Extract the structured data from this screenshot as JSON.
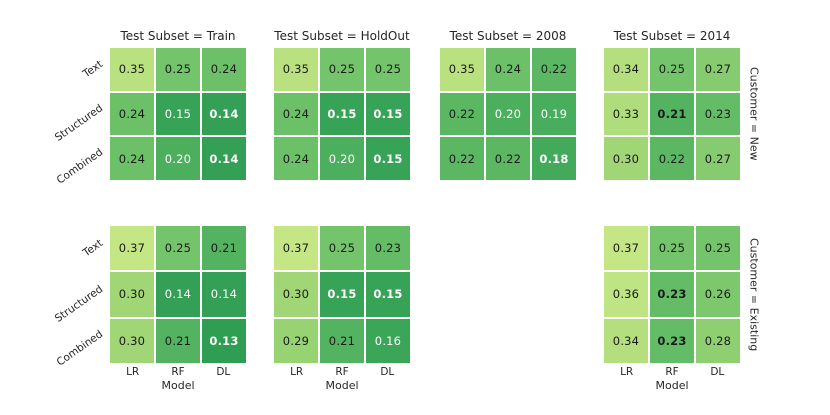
{
  "figure": {
    "background": "#ffffff",
    "text_color": "#262626",
    "cell_text_dark": "#1a1a1a",
    "cell_text_light": "#ffffff"
  },
  "chart_data": {
    "type": "heatmap",
    "title": "",
    "xlabel": "Model",
    "x_categories": [
      "LR",
      "RF",
      "DL"
    ],
    "y_categories": [
      "Text",
      "Structured",
      "Combined"
    ],
    "facet_col_variable": "Test Subset",
    "facet_row_variable": "Customer",
    "facet_col_values": [
      "Train",
      "HoldOut",
      "2008",
      "2014"
    ],
    "facet_row_values": [
      "New",
      "Existing"
    ],
    "value_decimals": 2,
    "white_text_threshold": 0.205,
    "bold_rule": "minimum value per facet",
    "colormap_stops": [
      [
        0.13,
        "#2f9e53"
      ],
      [
        0.2,
        "#4caf5e"
      ],
      [
        0.25,
        "#74c46b"
      ],
      [
        0.3,
        "#a0d675"
      ],
      [
        0.37,
        "#c4e685"
      ]
    ],
    "facets": [
      {
        "title": "Test Subset = Train",
        "side_title": null,
        "col": "Train",
        "row": "New",
        "grid_row": 0,
        "grid_col": 0,
        "show_x_ticks": false,
        "show_y_ticks": true,
        "values": [
          [
            0.35,
            0.25,
            0.24
          ],
          [
            0.24,
            0.15,
            0.14
          ],
          [
            0.24,
            0.2,
            0.14
          ]
        ]
      },
      {
        "title": "Test Subset = HoldOut",
        "side_title": null,
        "col": "HoldOut",
        "row": "New",
        "grid_row": 0,
        "grid_col": 1,
        "show_x_ticks": false,
        "show_y_ticks": false,
        "values": [
          [
            0.35,
            0.25,
            0.25
          ],
          [
            0.24,
            0.15,
            0.15
          ],
          [
            0.24,
            0.2,
            0.15
          ]
        ]
      },
      {
        "title": "Test Subset = 2008",
        "side_title": null,
        "col": "2008",
        "row": "New",
        "grid_row": 0,
        "grid_col": 2,
        "show_x_ticks": false,
        "show_y_ticks": false,
        "values": [
          [
            0.35,
            0.24,
            0.22
          ],
          [
            0.22,
            0.2,
            0.19
          ],
          [
            0.22,
            0.22,
            0.18
          ]
        ]
      },
      {
        "title": "Test Subset = 2014",
        "side_title": "Customer = New",
        "col": "2014",
        "row": "New",
        "grid_row": 0,
        "grid_col": 3,
        "show_x_ticks": false,
        "show_y_ticks": false,
        "values": [
          [
            0.34,
            0.25,
            0.27
          ],
          [
            0.33,
            0.21,
            0.23
          ],
          [
            0.3,
            0.22,
            0.27
          ]
        ]
      },
      {
        "title": null,
        "side_title": null,
        "col": "Train",
        "row": "Existing",
        "grid_row": 1,
        "grid_col": 0,
        "show_x_ticks": true,
        "show_y_ticks": true,
        "values": [
          [
            0.37,
            0.25,
            0.21
          ],
          [
            0.3,
            0.14,
            0.14
          ],
          [
            0.3,
            0.21,
            0.13
          ]
        ]
      },
      {
        "title": null,
        "side_title": null,
        "col": "HoldOut",
        "row": "Existing",
        "grid_row": 1,
        "grid_col": 1,
        "show_x_ticks": true,
        "show_y_ticks": false,
        "values": [
          [
            0.37,
            0.25,
            0.23
          ],
          [
            0.3,
            0.15,
            0.15
          ],
          [
            0.29,
            0.21,
            0.16
          ]
        ]
      },
      {
        "title": null,
        "side_title": "Customer = Existing",
        "col": "2014",
        "row": "Existing",
        "grid_row": 1,
        "grid_col": 3,
        "show_x_ticks": true,
        "show_y_ticks": false,
        "values": [
          [
            0.37,
            0.25,
            0.25
          ],
          [
            0.36,
            0.23,
            0.26
          ],
          [
            0.34,
            0.23,
            0.28
          ]
        ]
      }
    ]
  }
}
